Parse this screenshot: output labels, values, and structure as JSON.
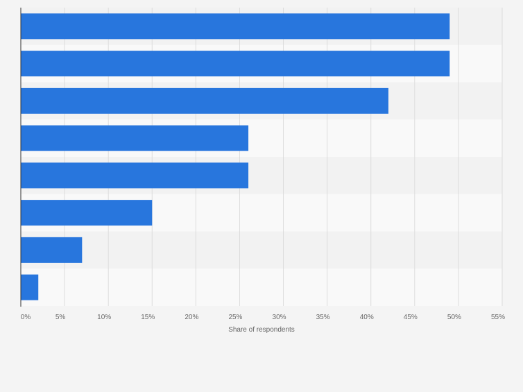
{
  "colors": {
    "background": "#f4f4f4",
    "band_light": "#f9f9f9",
    "band_dark": "#f2f2f2",
    "bar": "#2876dd",
    "grid": "#dcdcdc",
    "axis": "#333333",
    "tick_text": "#666666"
  },
  "chart_data": {
    "type": "bar",
    "orientation": "horizontal",
    "categories": [
      "",
      "",
      "",
      "",
      "",
      "",
      "",
      ""
    ],
    "values": [
      49,
      49,
      42,
      26,
      26,
      15,
      7,
      2
    ],
    "xlabel": "Share of respondents",
    "ylabel": "",
    "xlim": [
      0,
      55
    ],
    "xticks": [
      0,
      5,
      10,
      15,
      20,
      25,
      30,
      35,
      40,
      45,
      50,
      55
    ],
    "xtick_labels": [
      "0%",
      "5%",
      "10%",
      "15%",
      "20%",
      "25%",
      "30%",
      "35%",
      "40%",
      "45%",
      "50%",
      "55%"
    ],
    "grid": true,
    "legend": "none"
  }
}
